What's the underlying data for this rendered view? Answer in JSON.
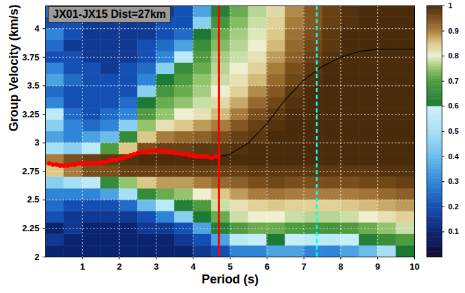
{
  "chart_data": {
    "type": "heatmap",
    "title": "JX01-JX15 Dist=27km",
    "x_label": "Period (s)",
    "y_label": "Group Velocity (km/s)",
    "xlim": [
      0,
      10
    ],
    "xticks": [
      1,
      2,
      3,
      4,
      5,
      6,
      7,
      8,
      9,
      10
    ],
    "ylim": [
      2,
      4.2
    ],
    "yticks": [
      2,
      2.25,
      2.5,
      2.75,
      3,
      3.25,
      3.5,
      3.75,
      4
    ],
    "grid": true,
    "heatmap": {
      "x_bins": [
        0,
        0.5,
        1,
        1.5,
        2,
        2.5,
        3,
        3.5,
        4,
        4.5,
        5,
        5.5,
        6,
        6.5,
        7,
        7.5,
        8,
        8.5,
        9,
        9.5,
        10
      ],
      "y_bins": [
        2,
        2.1,
        2.2,
        2.3,
        2.4,
        2.5,
        2.6,
        2.7,
        2.8,
        2.9,
        3,
        3.1,
        3.2,
        3.3,
        3.4,
        3.5,
        3.6,
        3.7,
        3.8,
        3.9,
        4,
        4.1,
        4.2
      ],
      "values": [
        [
          0.1,
          0.15,
          0.1,
          0.2,
          0.25,
          0.3,
          0.45,
          0.85,
          0.9,
          0.5,
          0.35,
          0.45,
          0.55,
          0.3,
          0.25,
          0.35,
          0.3,
          0.2,
          0.25,
          0.3,
          0.2,
          0.25
        ],
        [
          0.1,
          0.1,
          0.15,
          0.15,
          0.2,
          0.3,
          0.5,
          0.9,
          0.95,
          0.45,
          0.3,
          0.3,
          0.25,
          0.2,
          0.2,
          0.25,
          0.2,
          0.2,
          0.15,
          0.2,
          0.2,
          0.2
        ],
        [
          0.1,
          0.1,
          0.1,
          0.15,
          0.2,
          0.3,
          0.55,
          0.95,
          0.97,
          0.55,
          0.35,
          0.25,
          0.2,
          0.2,
          0.2,
          0.2,
          0.2,
          0.15,
          0.15,
          0.15,
          0.15,
          0.15
        ],
        [
          0.1,
          0.1,
          0.1,
          0.15,
          0.2,
          0.35,
          0.65,
          0.95,
          0.98,
          0.7,
          0.4,
          0.3,
          0.25,
          0.2,
          0.2,
          0.2,
          0.15,
          0.15,
          0.15,
          0.15,
          0.15,
          0.15
        ],
        [
          0.1,
          0.1,
          0.1,
          0.15,
          0.25,
          0.5,
          0.75,
          0.97,
          0.99,
          0.85,
          0.65,
          0.45,
          0.3,
          0.25,
          0.2,
          0.2,
          0.2,
          0.15,
          0.15,
          0.15,
          0.15,
          0.15
        ],
        [
          0.1,
          0.1,
          0.15,
          0.2,
          0.4,
          0.65,
          0.85,
          0.97,
          1,
          0.95,
          0.85,
          0.75,
          0.7,
          0.6,
          0.45,
          0.3,
          0.25,
          0.2,
          0.2,
          0.15,
          0.15,
          0.15
        ],
        [
          0.1,
          0.1,
          0.15,
          0.3,
          0.55,
          0.72,
          0.88,
          0.97,
          1,
          0.97,
          0.9,
          0.82,
          0.75,
          0.72,
          0.68,
          0.6,
          0.45,
          0.3,
          0.25,
          0.2,
          0.2,
          0.15
        ],
        [
          0.1,
          0.15,
          0.2,
          0.45,
          0.62,
          0.75,
          0.88,
          0.97,
          1,
          0.97,
          0.92,
          0.85,
          0.8,
          0.75,
          0.72,
          0.7,
          0.65,
          0.55,
          0.35,
          0.25,
          0.2,
          0.2
        ],
        [
          0.15,
          0.2,
          0.35,
          0.6,
          0.7,
          0.8,
          0.9,
          0.97,
          1,
          0.98,
          0.93,
          0.88,
          0.82,
          0.78,
          0.76,
          0.75,
          0.72,
          0.7,
          0.66,
          0.6,
          0.45,
          0.35
        ],
        [
          0.2,
          0.35,
          0.62,
          0.72,
          0.78,
          0.85,
          0.92,
          0.97,
          1,
          0.98,
          0.95,
          0.9,
          0.86,
          0.83,
          0.8,
          0.78,
          0.77,
          0.76,
          0.74,
          0.72,
          0.68,
          0.62
        ],
        [
          0.3,
          0.55,
          0.7,
          0.78,
          0.82,
          0.88,
          0.93,
          0.97,
          1,
          0.99,
          0.97,
          0.94,
          0.9,
          0.87,
          0.84,
          0.82,
          0.8,
          0.78,
          0.77,
          0.76,
          0.74,
          0.72
        ],
        [
          0.3,
          0.58,
          0.72,
          0.8,
          0.84,
          0.9,
          0.95,
          0.98,
          1,
          1,
          0.98,
          0.97,
          0.95,
          0.92,
          0.89,
          0.86,
          0.84,
          0.82,
          0.8,
          0.79,
          0.78,
          0.77
        ],
        [
          0.35,
          0.6,
          0.72,
          0.8,
          0.85,
          0.91,
          0.96,
          0.98,
          1,
          1,
          1,
          0.99,
          0.98,
          0.96,
          0.94,
          0.92,
          0.9,
          0.88,
          0.86,
          0.85,
          0.84,
          0.83
        ],
        [
          0.35,
          0.58,
          0.7,
          0.78,
          0.84,
          0.9,
          0.95,
          0.98,
          1,
          1,
          1,
          1,
          1,
          0.99,
          0.98,
          0.96,
          0.95,
          0.93,
          0.92,
          0.91,
          0.9,
          0.89
        ],
        [
          0.3,
          0.55,
          0.68,
          0.77,
          0.84,
          0.9,
          0.95,
          0.98,
          1,
          1,
          1,
          1,
          1,
          1,
          1,
          0.99,
          0.98,
          0.97,
          0.96,
          0.95,
          0.94,
          0.94
        ],
        [
          0.3,
          0.55,
          0.68,
          0.77,
          0.84,
          0.9,
          0.95,
          0.98,
          1,
          1,
          1,
          1,
          1,
          1,
          1,
          1,
          1,
          0.99,
          0.98,
          0.98,
          0.97,
          0.97
        ],
        [
          0.35,
          0.58,
          0.7,
          0.78,
          0.85,
          0.9,
          0.95,
          0.98,
          1,
          1,
          1,
          1,
          1,
          1,
          1,
          1,
          1,
          1,
          1,
          1,
          0.99,
          0.99
        ],
        [
          0.4,
          0.62,
          0.72,
          0.8,
          0.86,
          0.91,
          0.96,
          0.98,
          1,
          1,
          1,
          1,
          1,
          1,
          1,
          1,
          1,
          1,
          1,
          1,
          1,
          1
        ],
        [
          0.5,
          0.66,
          0.75,
          0.82,
          0.87,
          0.92,
          0.96,
          0.99,
          1,
          1,
          1,
          1,
          1,
          1,
          1,
          1,
          1,
          1,
          1,
          1,
          1,
          1
        ],
        [
          0.6,
          0.7,
          0.78,
          0.84,
          0.88,
          0.93,
          0.97,
          0.99,
          1,
          1,
          1,
          1,
          1,
          1,
          1,
          1,
          1,
          1,
          1,
          1,
          1,
          1
        ]
      ]
    },
    "colorbar": {
      "range": [
        0,
        1
      ],
      "ticks": [
        0.1,
        0.2,
        0.3,
        0.4,
        0.5,
        0.6,
        0.7,
        0.8,
        0.9,
        1
      ]
    },
    "series": [
      {
        "type": "scatter",
        "color": "red",
        "marker": "circle",
        "x": [
          0.1,
          0.2,
          0.3,
          0.4,
          0.5,
          0.6,
          0.7,
          0.8,
          0.9,
          1.0,
          1.1,
          1.2,
          1.3,
          1.4,
          1.5,
          1.6,
          1.7,
          1.8,
          1.9,
          2.0,
          2.1,
          2.2,
          2.3,
          2.4,
          2.5,
          2.6,
          2.7,
          2.8,
          2.9,
          3.0,
          3.1,
          3.2,
          3.3,
          3.4,
          3.5,
          3.6,
          3.7,
          3.8,
          3.9,
          4.0,
          4.1,
          4.2,
          4.3,
          4.4,
          4.5,
          4.6,
          4.7
        ],
        "values": [
          2.82,
          2.81,
          2.81,
          2.8,
          2.8,
          2.8,
          2.81,
          2.81,
          2.82,
          2.82,
          2.82,
          2.82,
          2.82,
          2.82,
          2.83,
          2.83,
          2.84,
          2.85,
          2.85,
          2.86,
          2.87,
          2.88,
          2.89,
          2.9,
          2.91,
          2.92,
          2.92,
          2.93,
          2.93,
          2.93,
          2.93,
          2.93,
          2.92,
          2.92,
          2.91,
          2.91,
          2.9,
          2.9,
          2.89,
          2.89,
          2.88,
          2.88,
          2.88,
          2.88,
          2.87,
          2.88,
          2.88
        ]
      },
      {
        "type": "line",
        "color": "black",
        "x": [
          4.7,
          5,
          5.5,
          6,
          6.5,
          7,
          7.5,
          8,
          8.5,
          9,
          9.5,
          10
        ],
        "values": [
          2.88,
          2.9,
          3.0,
          3.17,
          3.38,
          3.55,
          3.67,
          3.75,
          3.8,
          3.82,
          3.82,
          3.82
        ]
      },
      {
        "type": "vline",
        "color": "red",
        "x": [
          4.7
        ]
      },
      {
        "type": "vline",
        "color": "cyan",
        "line_style": "dashed",
        "x": [
          7.35
        ]
      }
    ]
  }
}
